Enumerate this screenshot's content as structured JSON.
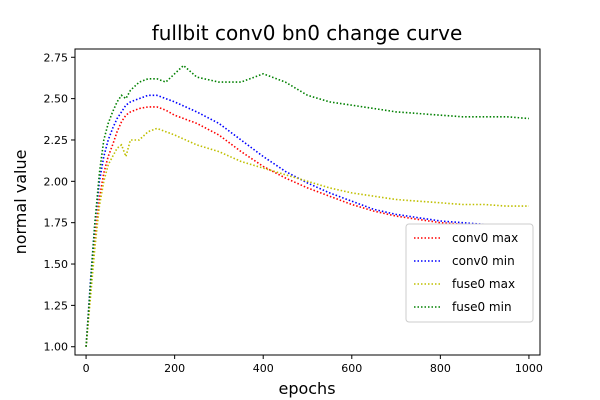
{
  "chart_data": {
    "type": "line",
    "title": "fullbit conv0 bn0 change curve",
    "xlabel": "epochs",
    "ylabel": "normal value",
    "xlim": [
      -25,
      1025
    ],
    "ylim": [
      0.95,
      2.8
    ],
    "xticks": [
      0,
      200,
      400,
      600,
      800,
      1000
    ],
    "yticks": [
      1.0,
      1.25,
      1.5,
      1.75,
      2.0,
      2.25,
      2.5,
      2.75
    ],
    "ytick_labels": [
      "1.00",
      "1.25",
      "1.50",
      "1.75",
      "2.00",
      "2.25",
      "2.50",
      "2.75"
    ],
    "grid": false,
    "legend_position": "lower right",
    "line_style": "dotted",
    "series": [
      {
        "name": "conv0 max",
        "color": "#ff0000",
        "x": [
          0,
          10,
          20,
          30,
          40,
          50,
          60,
          70,
          80,
          90,
          100,
          120,
          140,
          160,
          180,
          200,
          250,
          300,
          350,
          400,
          450,
          500,
          550,
          600,
          650,
          700,
          750,
          800,
          850,
          900,
          950,
          1000
        ],
        "y": [
          1.0,
          1.35,
          1.65,
          1.9,
          2.05,
          2.15,
          2.22,
          2.3,
          2.36,
          2.4,
          2.42,
          2.44,
          2.45,
          2.45,
          2.43,
          2.4,
          2.35,
          2.28,
          2.18,
          2.09,
          2.02,
          1.96,
          1.91,
          1.86,
          1.82,
          1.79,
          1.77,
          1.75,
          1.74,
          1.73,
          1.73,
          1.73
        ]
      },
      {
        "name": "conv0 min",
        "color": "#0000ff",
        "x": [
          0,
          10,
          20,
          30,
          40,
          50,
          60,
          70,
          80,
          90,
          100,
          120,
          140,
          160,
          180,
          200,
          250,
          300,
          350,
          400,
          450,
          500,
          550,
          600,
          650,
          700,
          750,
          800,
          850,
          900,
          950,
          1000
        ],
        "y": [
          1.0,
          1.4,
          1.75,
          2.0,
          2.15,
          2.25,
          2.32,
          2.38,
          2.42,
          2.46,
          2.48,
          2.5,
          2.52,
          2.52,
          2.5,
          2.48,
          2.42,
          2.35,
          2.25,
          2.15,
          2.06,
          1.99,
          1.93,
          1.88,
          1.83,
          1.8,
          1.78,
          1.76,
          1.75,
          1.74,
          1.74,
          1.74
        ]
      },
      {
        "name": "fuse0 max",
        "color": "#bfbf00",
        "x": [
          0,
          10,
          20,
          30,
          40,
          50,
          60,
          70,
          80,
          90,
          100,
          120,
          140,
          160,
          180,
          200,
          250,
          300,
          350,
          400,
          450,
          500,
          550,
          600,
          650,
          700,
          750,
          800,
          850,
          900,
          950,
          1000
        ],
        "y": [
          1.0,
          1.3,
          1.6,
          1.85,
          2.0,
          2.1,
          2.15,
          2.2,
          2.22,
          2.15,
          2.25,
          2.25,
          2.3,
          2.32,
          2.3,
          2.28,
          2.22,
          2.18,
          2.12,
          2.08,
          2.04,
          2.0,
          1.96,
          1.93,
          1.91,
          1.89,
          1.88,
          1.87,
          1.86,
          1.86,
          1.85,
          1.85
        ]
      },
      {
        "name": "fuse0 min",
        "color": "#008000",
        "x": [
          0,
          10,
          20,
          30,
          40,
          50,
          60,
          70,
          80,
          90,
          100,
          120,
          140,
          160,
          180,
          200,
          220,
          250,
          300,
          350,
          400,
          450,
          500,
          550,
          600,
          650,
          700,
          750,
          800,
          850,
          900,
          950,
          1000
        ],
        "y": [
          1.0,
          1.38,
          1.75,
          2.05,
          2.25,
          2.35,
          2.42,
          2.48,
          2.52,
          2.5,
          2.55,
          2.6,
          2.62,
          2.62,
          2.6,
          2.65,
          2.7,
          2.63,
          2.6,
          2.6,
          2.65,
          2.6,
          2.52,
          2.48,
          2.46,
          2.44,
          2.42,
          2.41,
          2.4,
          2.39,
          2.39,
          2.39,
          2.38
        ]
      }
    ]
  }
}
